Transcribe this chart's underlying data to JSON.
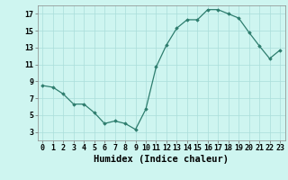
{
  "x": [
    0,
    1,
    2,
    3,
    4,
    5,
    6,
    7,
    8,
    9,
    10,
    11,
    12,
    13,
    14,
    15,
    16,
    17,
    18,
    19,
    20,
    21,
    22,
    23
  ],
  "y": [
    8.5,
    8.3,
    7.5,
    6.3,
    6.3,
    5.3,
    4.0,
    4.3,
    4.0,
    3.3,
    5.7,
    10.7,
    13.3,
    15.3,
    16.3,
    16.3,
    17.5,
    17.5,
    17.0,
    16.5,
    14.8,
    13.2,
    11.7,
    12.7
  ],
  "line_color": "#2e7d6e",
  "marker": "D",
  "marker_size": 1.8,
  "bg_color": "#cef5f0",
  "grid_color": "#aaddda",
  "xlabel": "Humidex (Indice chaleur)",
  "ylim": [
    2,
    18
  ],
  "xlim": [
    -0.5,
    23.5
  ],
  "yticks": [
    3,
    5,
    7,
    9,
    11,
    13,
    15,
    17
  ],
  "xticks": [
    0,
    1,
    2,
    3,
    4,
    5,
    6,
    7,
    8,
    9,
    10,
    11,
    12,
    13,
    14,
    15,
    16,
    17,
    18,
    19,
    20,
    21,
    22,
    23
  ],
  "xtick_labels": [
    "0",
    "1",
    "2",
    "3",
    "4",
    "5",
    "6",
    "7",
    "8",
    "9",
    "10",
    "11",
    "12",
    "13",
    "14",
    "15",
    "16",
    "17",
    "18",
    "19",
    "20",
    "21",
    "22",
    "23"
  ],
  "axis_fontsize": 6.5,
  "tick_fontsize": 6.0,
  "xlabel_fontsize": 7.5
}
